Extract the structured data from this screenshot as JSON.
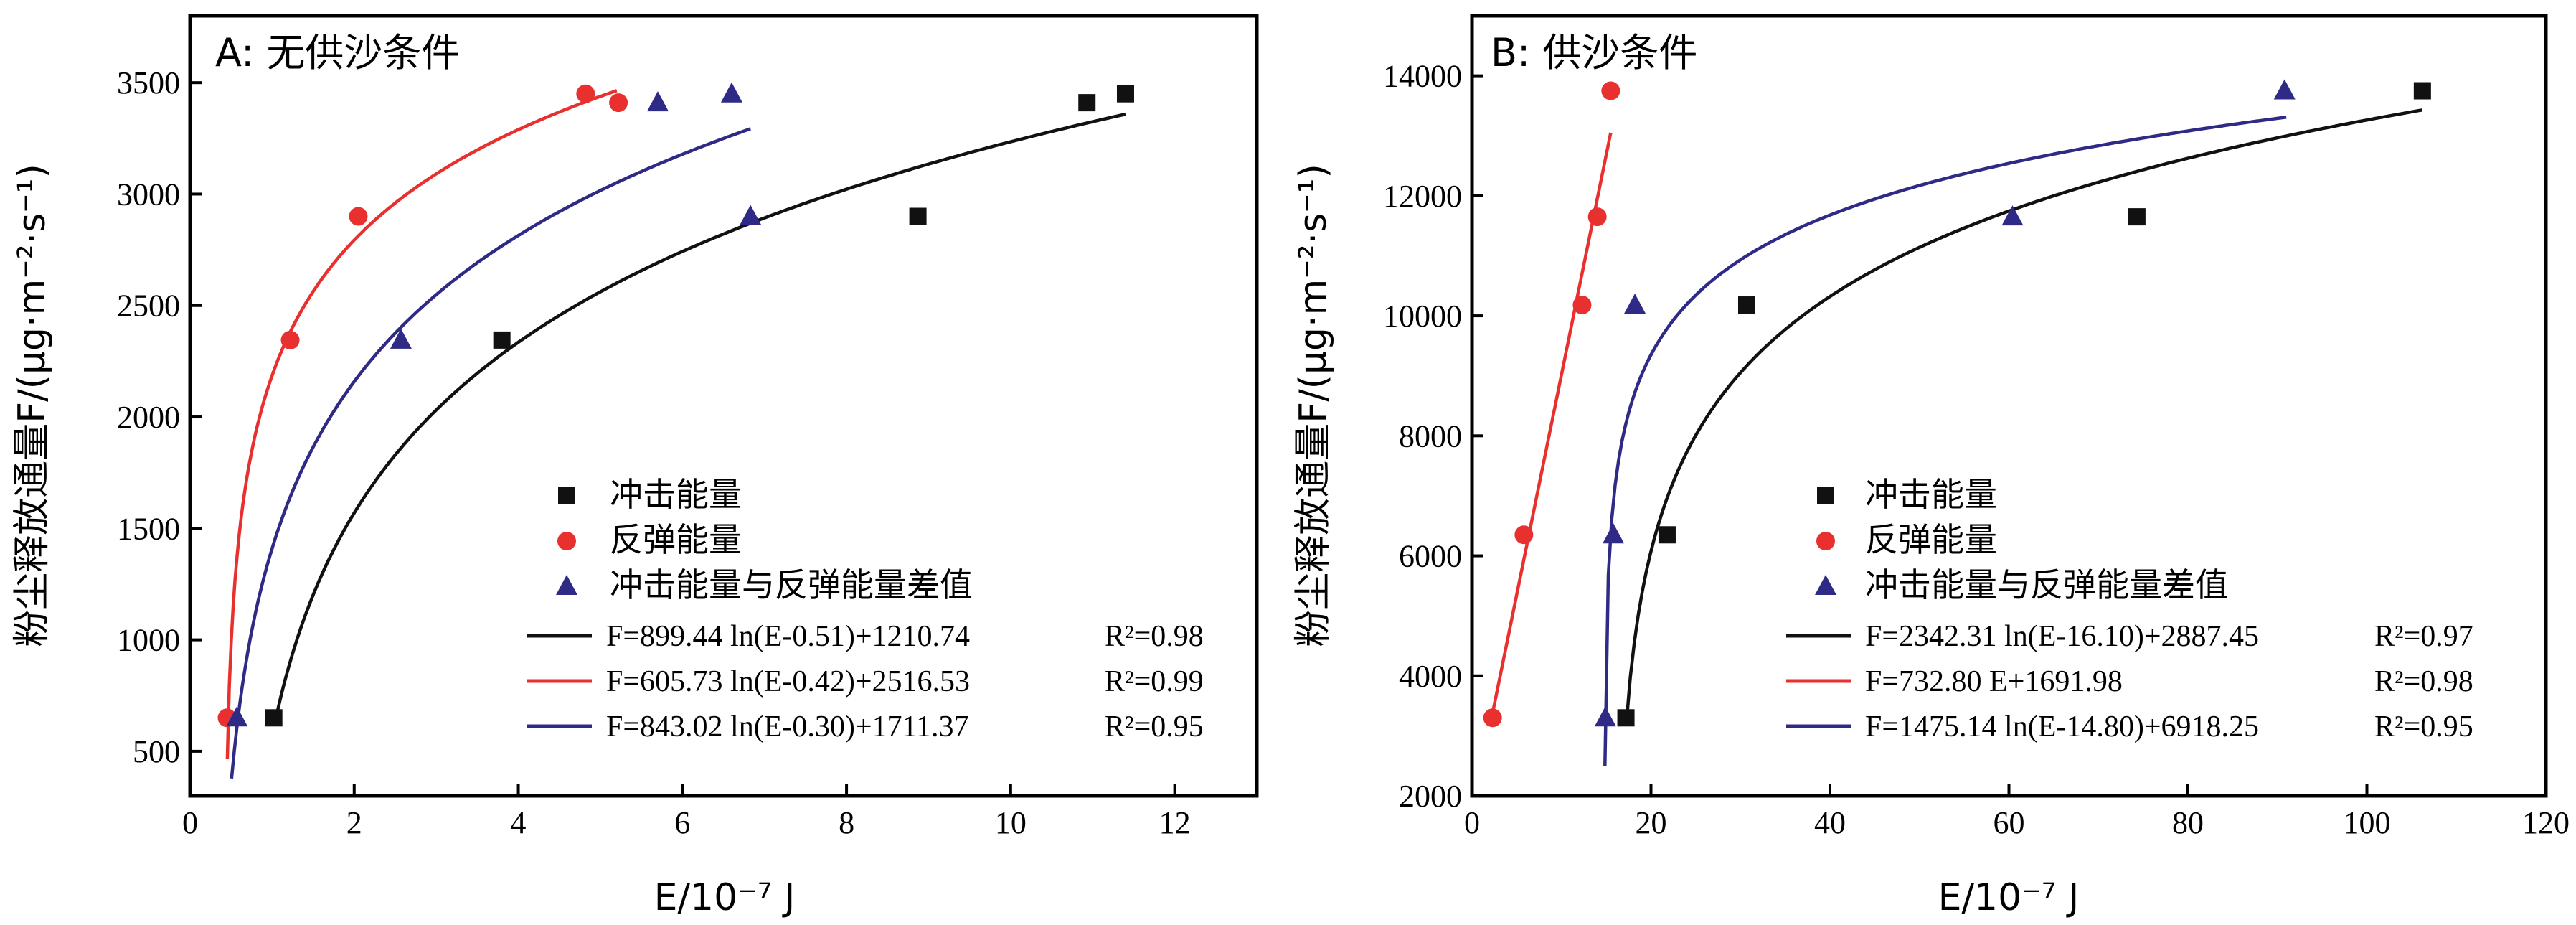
{
  "colors": {
    "impact": "#111111",
    "rebound": "#e8312f",
    "difference": "#2e2a86"
  },
  "chart_data": [
    {
      "type": "scatter",
      "title": "A: 无供沙条件",
      "xlabel": "E/10⁻⁷ J",
      "ylabel": "粉尘释放通量F/(μg·m⁻²·s⁻¹)",
      "xlim": [
        0,
        13
      ],
      "ylim": [
        300,
        3800
      ],
      "xticks": [
        0,
        2,
        4,
        6,
        8,
        10,
        12
      ],
      "yticks": [
        500,
        1000,
        1500,
        2000,
        2500,
        3000,
        3500
      ],
      "legend_position": "bottom-right",
      "series": [
        {
          "name": "冲击能量",
          "marker": "square",
          "color": "#111111",
          "x": [
            1.02,
            3.8,
            8.87,
            10.93,
            11.4
          ],
          "y": [
            650,
            2345,
            2900,
            3410,
            3450
          ],
          "fit": {
            "kind": "log",
            "a": 899.44,
            "b": 0.51,
            "c": 1210.74,
            "xmin": 1.05,
            "xmax": 11.4
          },
          "equation": "F=899.44 ln(E-0.51)+1210.74",
          "r2": "R²=0.98"
        },
        {
          "name": "反弹能量",
          "marker": "circle",
          "color": "#e8312f",
          "x": [
            0.45,
            1.22,
            2.05,
            4.82,
            5.22
          ],
          "y": [
            650,
            2345,
            2900,
            3450,
            3410
          ],
          "fit": {
            "kind": "log",
            "a": 605.73,
            "b": 0.42,
            "c": 2516.53,
            "xmin": 0.43,
            "xmax": 5.2
          },
          "equation": "F=605.73 ln(E-0.42)+2516.53",
          "r2": "R²=0.99"
        },
        {
          "name": "冲击能量与反弹能量差值",
          "marker": "triangle",
          "color": "#2e2a86",
          "x": [
            0.57,
            2.57,
            5.7,
            6.6,
            6.83
          ],
          "y": [
            650,
            2345,
            3410,
            3450,
            2900
          ],
          "fit": {
            "kind": "log",
            "a": 843.02,
            "b": 0.3,
            "c": 1711.37,
            "xmin": 0.31,
            "xmax": 6.83
          },
          "equation": "F=843.02 ln(E-0.30)+1711.37",
          "r2": "R²=0.95"
        }
      ]
    },
    {
      "type": "scatter",
      "title": "B: 供沙条件",
      "xlabel": "E/10⁻⁷ J",
      "ylabel": "粉尘释放通量F/(μg·m⁻²·s⁻¹)",
      "xlim": [
        0,
        120
      ],
      "ylim": [
        2000,
        15000
      ],
      "xticks": [
        0,
        20,
        40,
        60,
        80,
        100,
        120
      ],
      "yticks": [
        2000,
        4000,
        6000,
        8000,
        10000,
        12000,
        14000
      ],
      "legend_position": "bottom-right",
      "series": [
        {
          "name": "冲击能量",
          "marker": "square",
          "color": "#111111",
          "x": [
            17.2,
            21.8,
            30.7,
            74.3,
            106.2
          ],
          "y": [
            3300,
            6350,
            10180,
            11650,
            13750
          ],
          "fit": {
            "kind": "log",
            "a": 2342.31,
            "b": 16.1,
            "c": 2887.45,
            "xmin": 17.25,
            "xmax": 106.2
          },
          "equation": "F=2342.31 ln(E-16.10)+2887.45",
          "r2": "R²=0.97"
        },
        {
          "name": "反弹能量",
          "marker": "circle",
          "color": "#e8312f",
          "x": [
            2.3,
            5.8,
            12.3,
            14.0,
            15.5
          ],
          "y": [
            3300,
            6350,
            10180,
            11650,
            13750
          ],
          "fit": {
            "kind": "linear",
            "a": 732.8,
            "c": 1691.98,
            "xmin": 2.0,
            "xmax": 15.5
          },
          "equation": "F=732.80 E+1691.98",
          "r2": "R²=0.98"
        },
        {
          "name": "冲击能量与反弹能量差值",
          "marker": "triangle",
          "color": "#2e2a86",
          "x": [
            14.9,
            15.8,
            18.2,
            60.4,
            90.8
          ],
          "y": [
            3300,
            6350,
            10180,
            11650,
            13750
          ],
          "fit": {
            "kind": "log",
            "a": 1475.14,
            "b": 14.8,
            "c": 6918.25,
            "xmin": 14.85,
            "xmax": 91.0
          },
          "equation": "F=1475.14 ln(E-14.80)+6918.25",
          "r2": "R²=0.95"
        }
      ]
    }
  ]
}
